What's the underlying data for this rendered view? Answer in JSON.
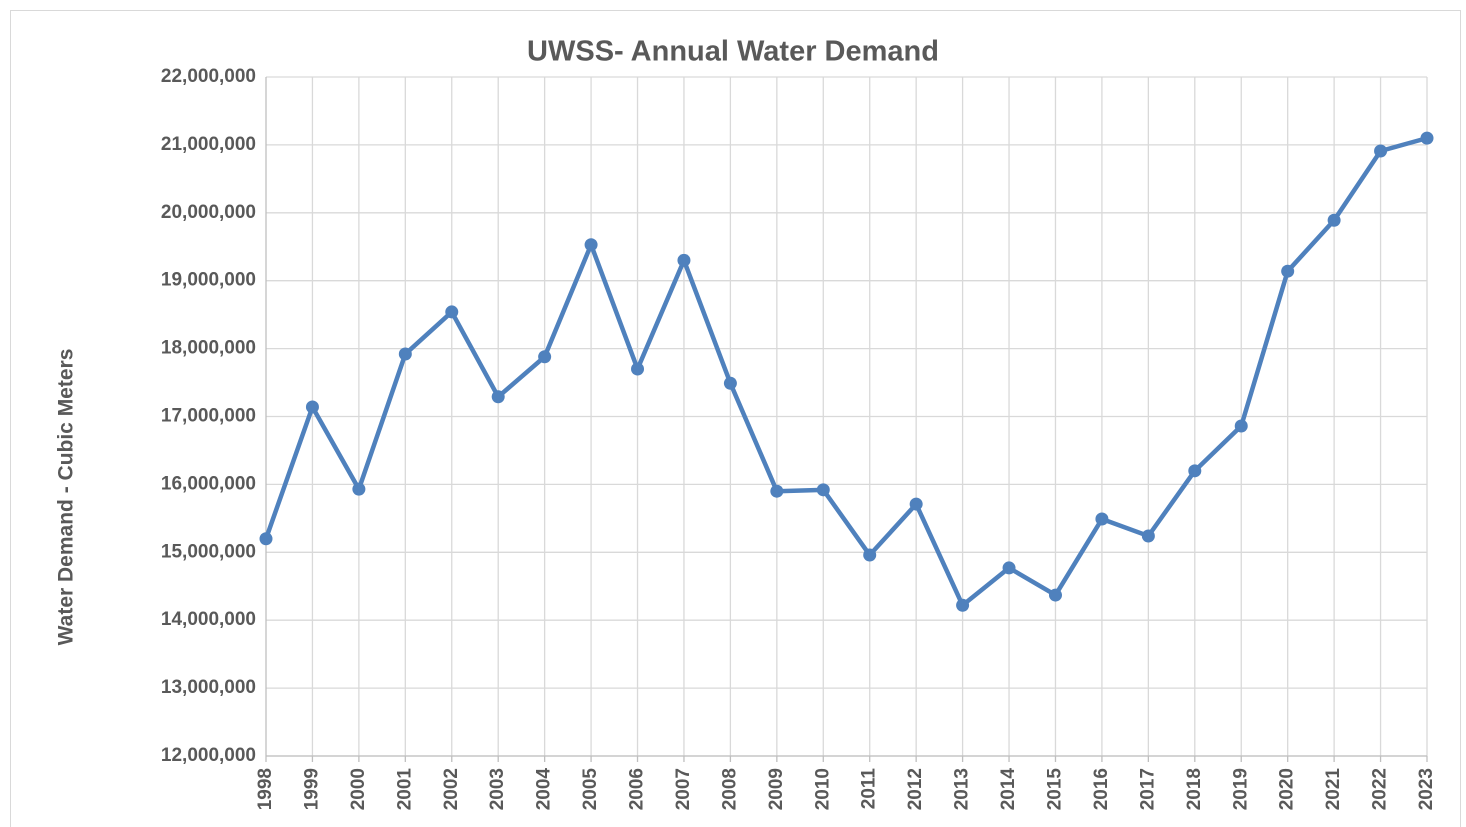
{
  "chart_data": {
    "type": "line",
    "title": "UWSS- Annual Water Demand",
    "y_label": "Water Demand - Cubic Meters",
    "categories": [
      "1998",
      "1999",
      "2000",
      "2001",
      "2002",
      "2003",
      "2004",
      "2005",
      "2006",
      "2007",
      "2008",
      "2009",
      "2010",
      "2011",
      "2012",
      "2013",
      "2014",
      "2015",
      "2016",
      "2017",
      "2018",
      "2019",
      "2020",
      "2021",
      "2022",
      "2023"
    ],
    "series": [
      {
        "name": "Water Demand",
        "color": "#4f81bd",
        "values": [
          15200000,
          17140000,
          15930000,
          17920000,
          18540000,
          17290000,
          17880000,
          19530000,
          17700000,
          19300000,
          17490000,
          15900000,
          15920000,
          14960000,
          15710000,
          14220000,
          14770000,
          14370000,
          15490000,
          15240000,
          16200000,
          16860000,
          19140000,
          19890000,
          20910000,
          21100000
        ]
      }
    ],
    "ylim": [
      12000000,
      22000000
    ],
    "yticks": [
      {
        "value": 12000000,
        "label": "12,000,000"
      },
      {
        "value": 13000000,
        "label": "13,000,000"
      },
      {
        "value": 14000000,
        "label": "14,000,000"
      },
      {
        "value": 15000000,
        "label": "15,000,000"
      },
      {
        "value": 16000000,
        "label": "16,000,000"
      },
      {
        "value": 17000000,
        "label": "17,000,000"
      },
      {
        "value": 18000000,
        "label": "18,000,000"
      },
      {
        "value": 19000000,
        "label": "19,000,000"
      },
      {
        "value": 20000000,
        "label": "20,000,000"
      },
      {
        "value": 21000000,
        "label": "21,000,000"
      },
      {
        "value": 22000000,
        "label": "22,000,000"
      }
    ],
    "grid": true
  }
}
